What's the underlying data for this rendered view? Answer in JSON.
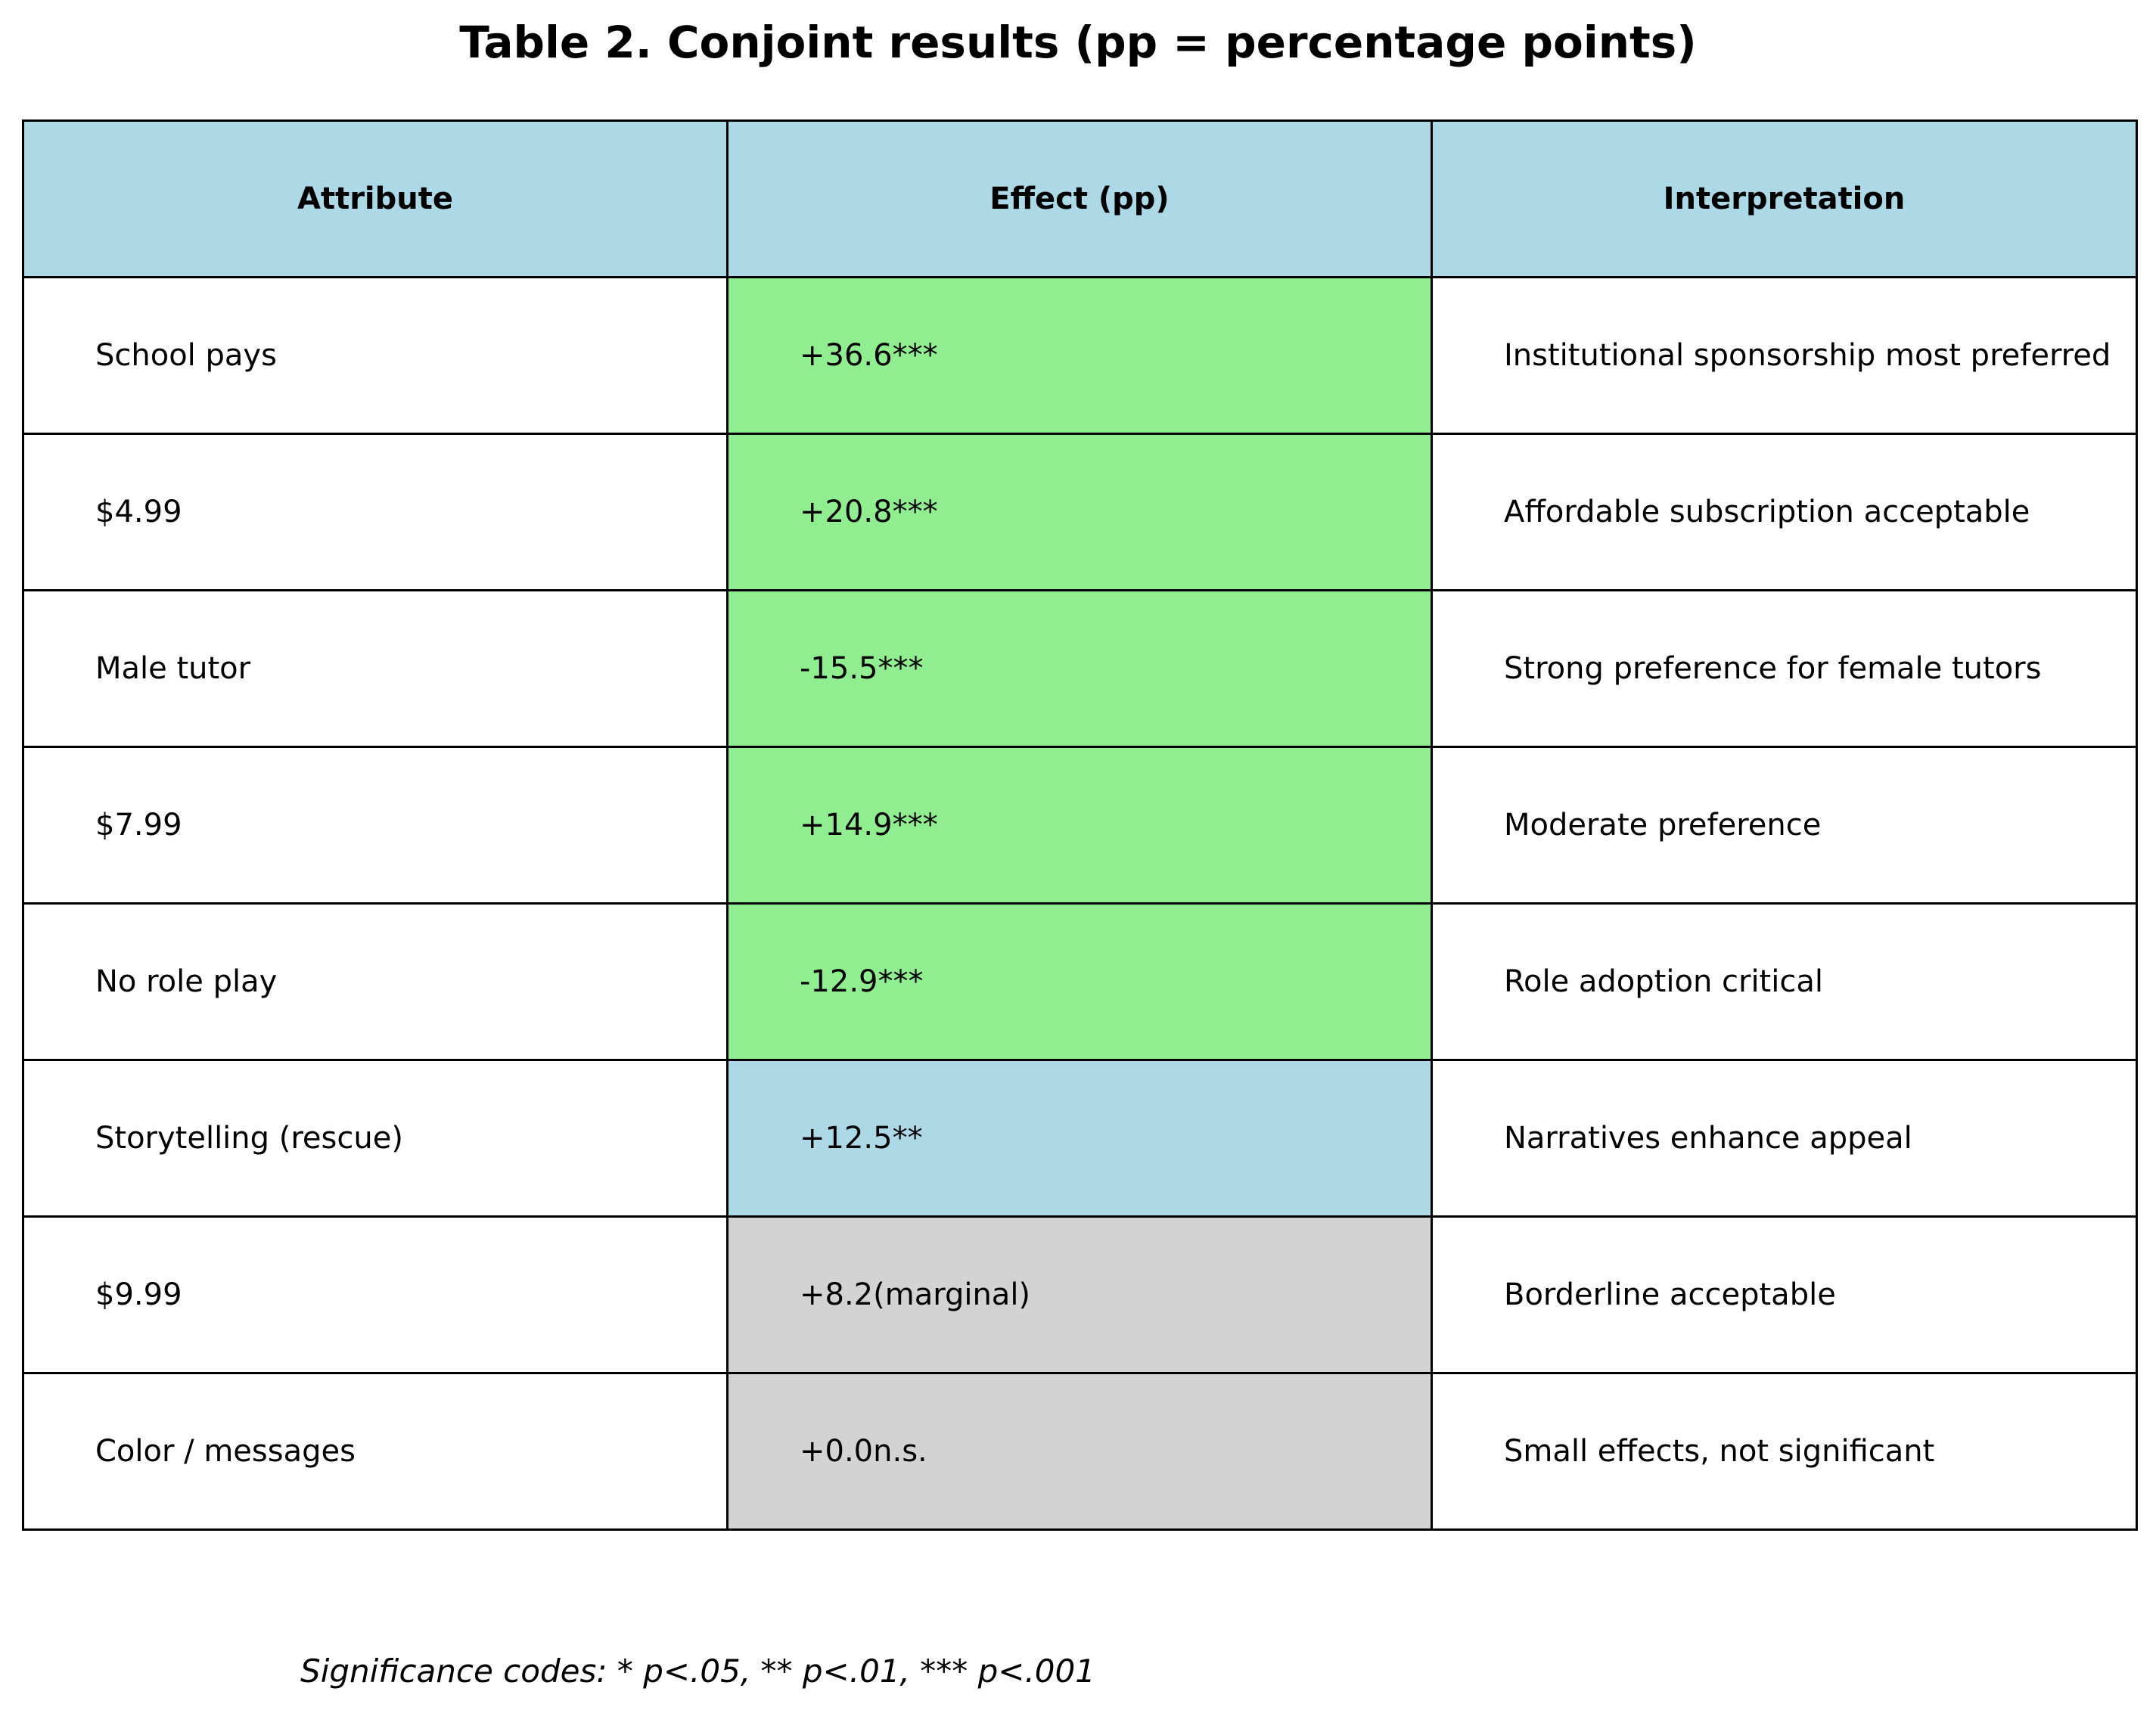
{
  "chart_data": {
    "type": "table",
    "title": "Table 2. Conjoint results (pp = percentage points)",
    "columns": [
      "Attribute",
      "Effect (pp)",
      "Interpretation"
    ],
    "header_color": "#add8e6",
    "significance_colors": {
      "p<.001": "#90ee90",
      "p<.01": "#add8e6",
      "n.s.": "#d3d3d3"
    },
    "rows": [
      {
        "attribute": "School pays",
        "effect": "+36.6***",
        "effect_value": 36.6,
        "interpretation": "Institutional sponsorship most preferred",
        "effect_color": "#90ee90"
      },
      {
        "attribute": "$4.99",
        "effect": "+20.8***",
        "effect_value": 20.8,
        "interpretation": "Affordable subscription acceptable",
        "effect_color": "#90ee90"
      },
      {
        "attribute": "Male tutor",
        "effect": "-15.5***",
        "effect_value": -15.5,
        "interpretation": "Strong preference for female tutors",
        "effect_color": "#90ee90"
      },
      {
        "attribute": "$7.99",
        "effect": "+14.9***",
        "effect_value": 14.9,
        "interpretation": "Moderate preference",
        "effect_color": "#90ee90"
      },
      {
        "attribute": "No role play",
        "effect": "-12.9***",
        "effect_value": -12.9,
        "interpretation": "Role adoption critical",
        "effect_color": "#90ee90"
      },
      {
        "attribute": "Storytelling (rescue)",
        "effect": "+12.5**",
        "effect_value": 12.5,
        "interpretation": "Narratives enhance appeal",
        "effect_color": "#add8e6"
      },
      {
        "attribute": "$9.99",
        "effect": "+8.2(marginal)",
        "effect_value": 8.2,
        "interpretation": "Borderline acceptable",
        "effect_color": "#d3d3d3"
      },
      {
        "attribute": "Color / messages",
        "effect": "+0.0n.s.",
        "effect_value": 0.0,
        "interpretation": "Small effects, not significant",
        "effect_color": "#d3d3d3"
      }
    ],
    "footnote": "Significance codes: * p<.05, ** p<.01, *** p<.001"
  }
}
